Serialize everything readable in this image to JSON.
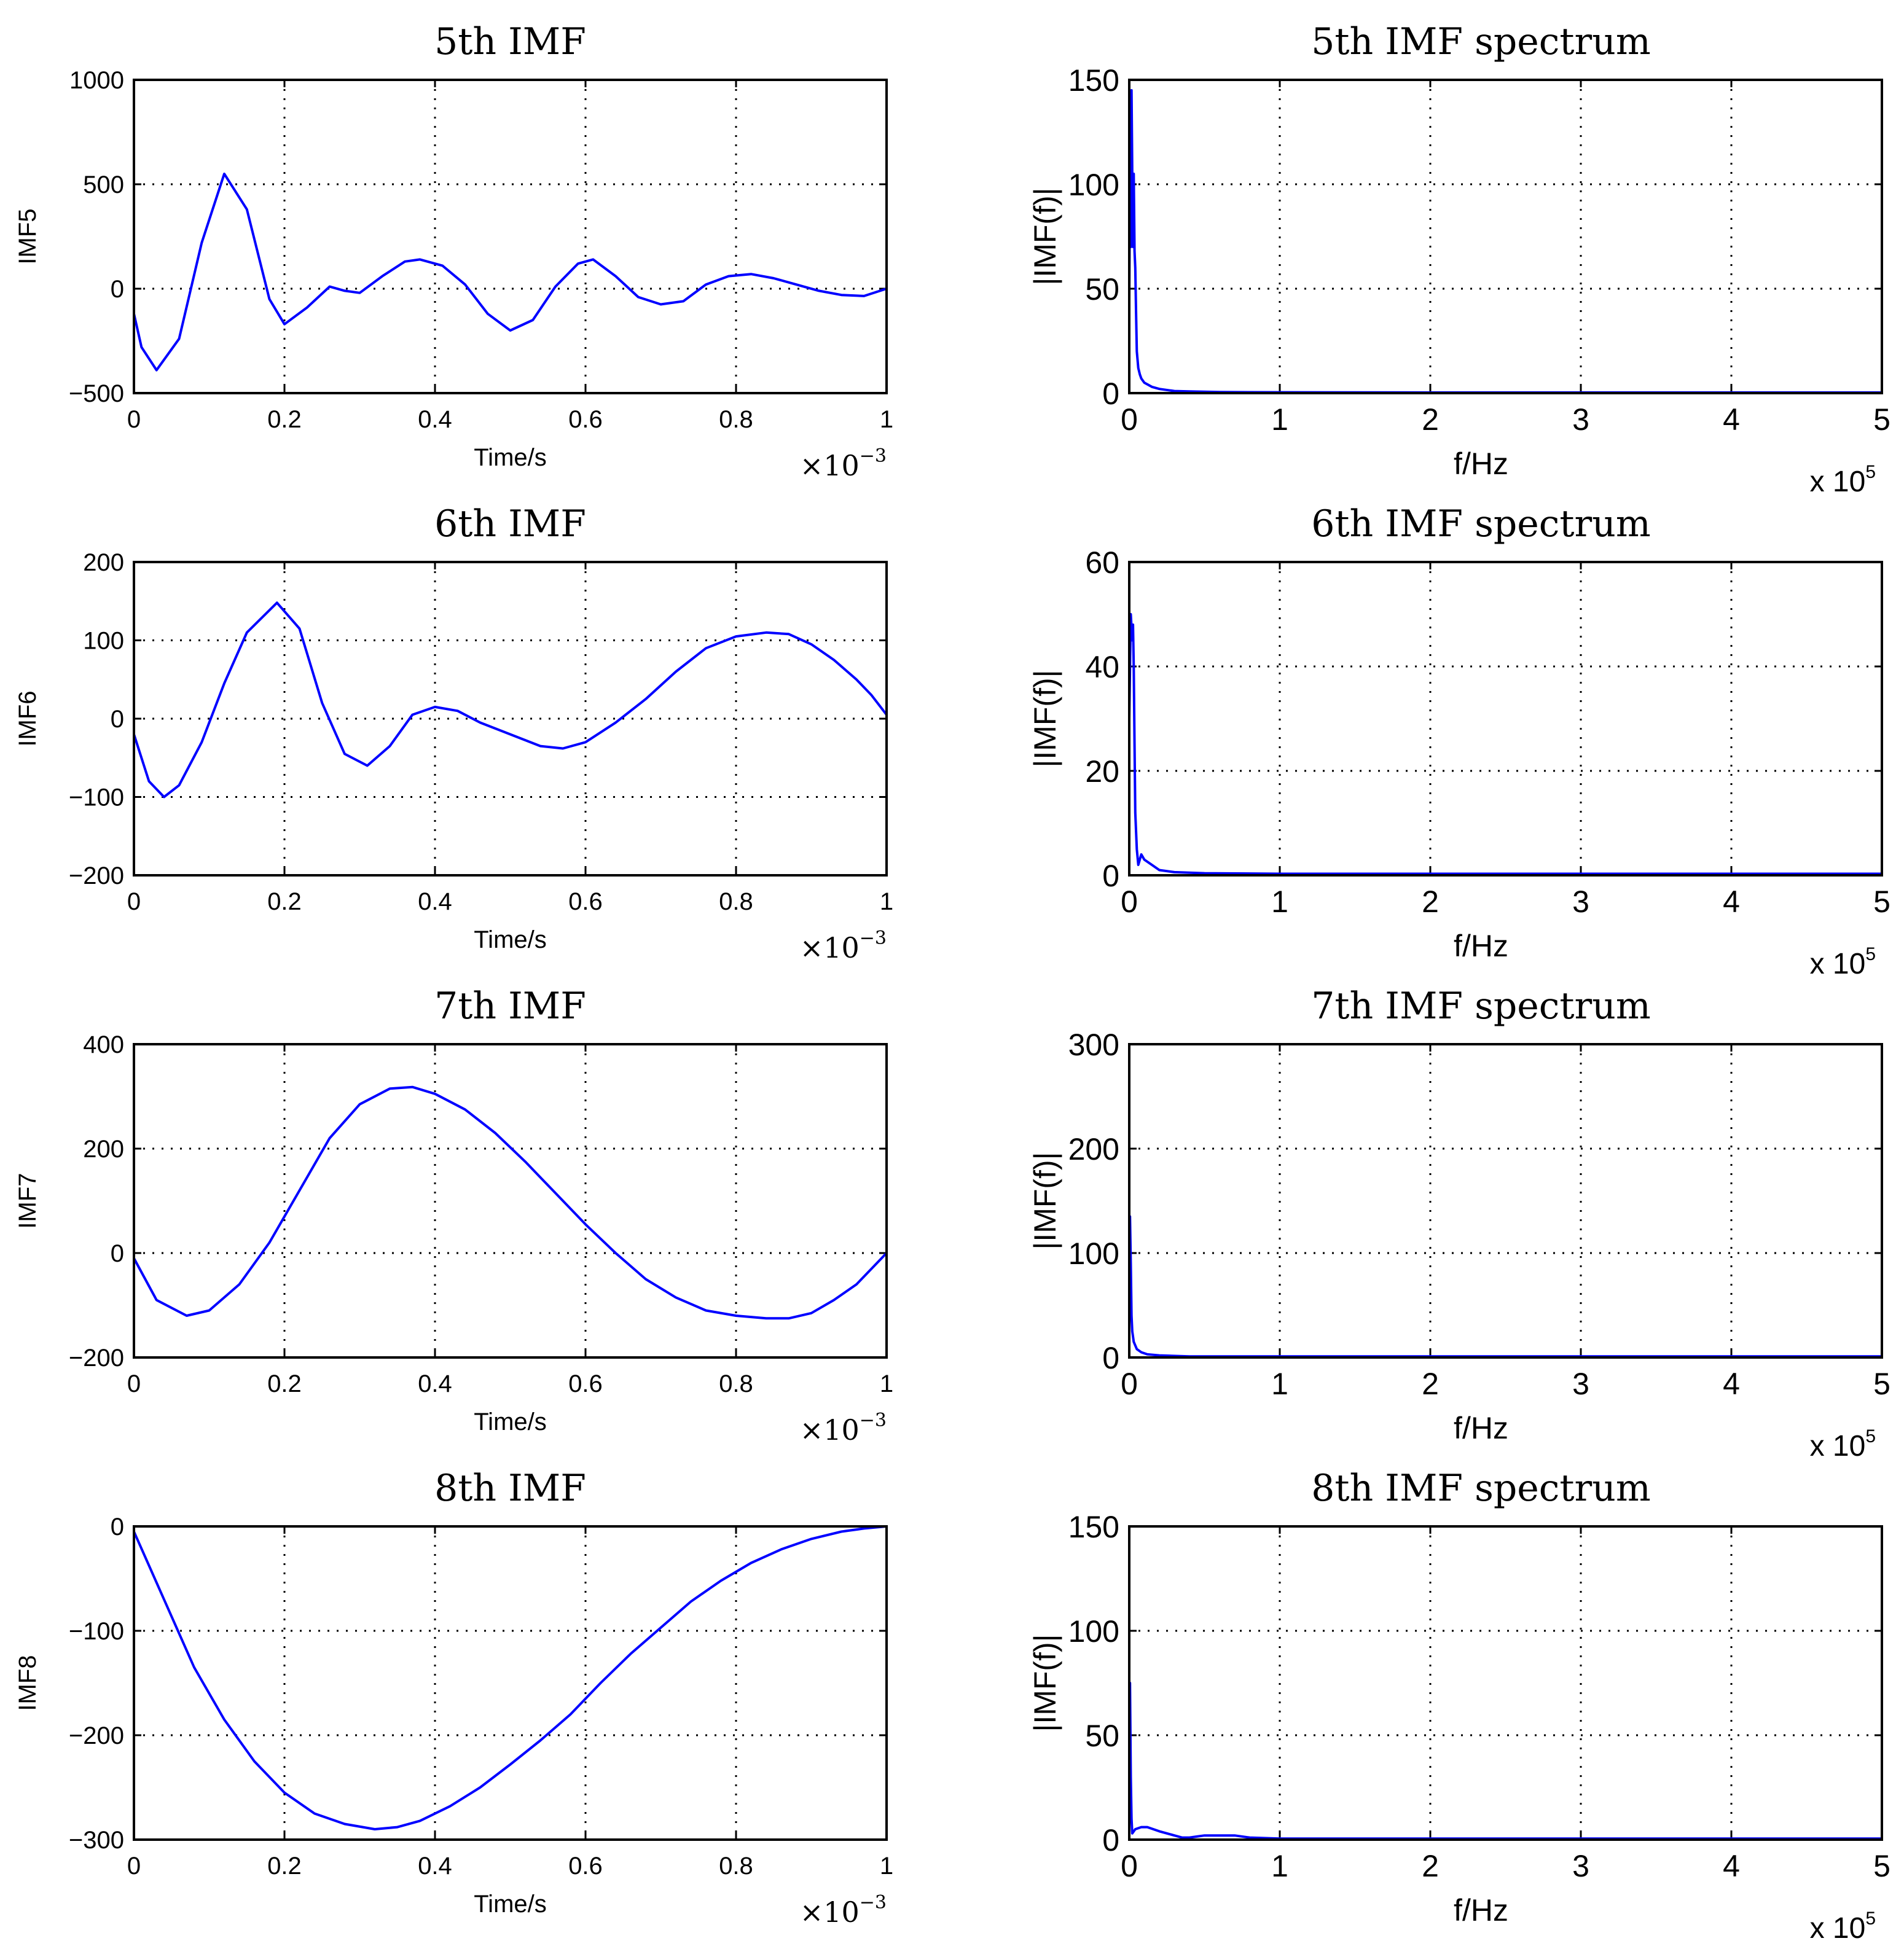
{
  "chart_data": [
    {
      "type": "line",
      "title": "5th IMF",
      "xlabel": "Time/s",
      "ylabel": "IMF5",
      "x_multiplier": "×10",
      "x_multiplier_exp": "−3",
      "xlim": [
        0,
        1
      ],
      "ylim": [
        -500,
        1000
      ],
      "xticks": [
        "0",
        "0.2",
        "0.4",
        "0.6",
        "0.8",
        "1"
      ],
      "yticks": [
        "−500",
        "0",
        "500",
        "1000"
      ],
      "series": [
        {
          "name": "IMF5",
          "color": "#0000ff",
          "x": [
            0,
            0.01,
            0.03,
            0.06,
            0.09,
            0.12,
            0.15,
            0.18,
            0.2,
            0.23,
            0.26,
            0.28,
            0.3,
            0.33,
            0.36,
            0.38,
            0.41,
            0.44,
            0.47,
            0.5,
            0.53,
            0.56,
            0.59,
            0.61,
            0.64,
            0.67,
            0.7,
            0.73,
            0.76,
            0.79,
            0.82,
            0.85,
            0.88,
            0.91,
            0.94,
            0.97,
            1.0
          ],
          "y": [
            -120,
            -280,
            -390,
            -240,
            220,
            550,
            380,
            -50,
            -170,
            -90,
            10,
            -10,
            -20,
            60,
            130,
            140,
            110,
            20,
            -120,
            -200,
            -150,
            10,
            120,
            140,
            60,
            -40,
            -75,
            -60,
            20,
            60,
            70,
            50,
            20,
            -10,
            -30,
            -35,
            0
          ]
        }
      ],
      "grid": true
    },
    {
      "type": "line",
      "title": "5th IMF spectrum",
      "xlabel": "f/Hz",
      "ylabel": "|IMF(f)|",
      "x_multiplier": "x 10",
      "x_multiplier_exp": "5",
      "xlim": [
        0,
        5
      ],
      "ylim": [
        0,
        150
      ],
      "xticks": [
        "0",
        "1",
        "2",
        "3",
        "4",
        "5"
      ],
      "yticks": [
        "0",
        "50",
        "100",
        "150"
      ],
      "series": [
        {
          "name": "spectrum5",
          "color": "#0000ff",
          "x": [
            0,
            0.005,
            0.01,
            0.015,
            0.02,
            0.025,
            0.03,
            0.035,
            0.04,
            0.045,
            0.05,
            0.06,
            0.07,
            0.08,
            0.1,
            0.15,
            0.2,
            0.3,
            0.4,
            0.6,
            1.0,
            2.0,
            3.0,
            4.0,
            5.0
          ],
          "y": [
            45,
            110,
            70,
            145,
            105,
            70,
            105,
            68,
            60,
            40,
            20,
            12,
            9,
            7,
            5,
            3,
            2,
            1,
            0.8,
            0.5,
            0.4,
            0.3,
            0.3,
            0.3,
            0.3
          ]
        }
      ],
      "grid": true
    },
    {
      "type": "line",
      "title": "6th IMF",
      "xlabel": "Time/s",
      "ylabel": "IMF6",
      "x_multiplier": "×10",
      "x_multiplier_exp": "−3",
      "xlim": [
        0,
        1
      ],
      "ylim": [
        -200,
        200
      ],
      "xticks": [
        "0",
        "0.2",
        "0.4",
        "0.6",
        "0.8",
        "1"
      ],
      "yticks": [
        "−200",
        "−100",
        "0",
        "100",
        "200"
      ],
      "series": [
        {
          "name": "IMF6",
          "color": "#0000ff",
          "x": [
            0,
            0.02,
            0.04,
            0.06,
            0.09,
            0.12,
            0.15,
            0.19,
            0.22,
            0.25,
            0.28,
            0.31,
            0.34,
            0.37,
            0.4,
            0.43,
            0.46,
            0.5,
            0.54,
            0.57,
            0.6,
            0.64,
            0.68,
            0.72,
            0.76,
            0.8,
            0.84,
            0.87,
            0.9,
            0.93,
            0.96,
            0.98,
            1.0
          ],
          "y": [
            -20,
            -80,
            -100,
            -85,
            -30,
            45,
            110,
            148,
            115,
            20,
            -45,
            -60,
            -35,
            5,
            15,
            10,
            -5,
            -20,
            -35,
            -38,
            -30,
            -5,
            25,
            60,
            90,
            105,
            110,
            108,
            95,
            75,
            50,
            30,
            5
          ]
        }
      ],
      "grid": true
    },
    {
      "type": "line",
      "title": "6th IMF spectrum",
      "xlabel": "f/Hz",
      "ylabel": "|IMF(f)|",
      "x_multiplier": "x 10",
      "x_multiplier_exp": "5",
      "xlim": [
        0,
        5
      ],
      "ylim": [
        0,
        60
      ],
      "xticks": [
        "0",
        "1",
        "2",
        "3",
        "4",
        "5"
      ],
      "yticks": [
        "0",
        "20",
        "40",
        "60"
      ],
      "series": [
        {
          "name": "spectrum6",
          "color": "#0000ff",
          "x": [
            0,
            0.01,
            0.02,
            0.025,
            0.03,
            0.035,
            0.04,
            0.05,
            0.06,
            0.08,
            0.1,
            0.15,
            0.2,
            0.3,
            0.5,
            1.0,
            2.0,
            3.0,
            4.0,
            5.0
          ],
          "y": [
            30,
            50,
            45,
            48,
            40,
            25,
            12,
            5,
            2,
            4,
            3,
            2,
            1,
            0.6,
            0.4,
            0.3,
            0.3,
            0.3,
            0.3,
            0.3
          ]
        }
      ],
      "grid": true
    },
    {
      "type": "line",
      "title": "7th IMF",
      "xlabel": "Time/s",
      "ylabel": "IMF7",
      "x_multiplier": "×10",
      "x_multiplier_exp": "−3",
      "xlim": [
        0,
        1
      ],
      "ylim": [
        -200,
        400
      ],
      "xticks": [
        "0",
        "0.2",
        "0.4",
        "0.6",
        "0.8",
        "1"
      ],
      "yticks": [
        "−200",
        "0",
        "200",
        "400"
      ],
      "series": [
        {
          "name": "IMF7",
          "color": "#0000ff",
          "x": [
            0,
            0.03,
            0.07,
            0.1,
            0.14,
            0.18,
            0.22,
            0.26,
            0.3,
            0.34,
            0.37,
            0.4,
            0.44,
            0.48,
            0.52,
            0.56,
            0.6,
            0.64,
            0.68,
            0.72,
            0.76,
            0.8,
            0.84,
            0.87,
            0.9,
            0.93,
            0.96,
            1.0
          ],
          "y": [
            -10,
            -90,
            -120,
            -110,
            -60,
            20,
            120,
            220,
            285,
            315,
            318,
            305,
            275,
            230,
            175,
            115,
            55,
            0,
            -50,
            -85,
            -110,
            -120,
            -125,
            -125,
            -115,
            -90,
            -60,
            0
          ]
        }
      ],
      "grid": true
    },
    {
      "type": "line",
      "title": "7th IMF spectrum",
      "xlabel": "f/Hz",
      "ylabel": "|IMF(f)|",
      "x_multiplier": "x 10",
      "x_multiplier_exp": "5",
      "xlim": [
        0,
        5
      ],
      "ylim": [
        0,
        300
      ],
      "xticks": [
        "0",
        "1",
        "2",
        "3",
        "4",
        "5"
      ],
      "yticks": [
        "0",
        "100",
        "200",
        "300"
      ],
      "series": [
        {
          "name": "spectrum7",
          "color": "#0000ff",
          "x": [
            0,
            0.005,
            0.01,
            0.015,
            0.02,
            0.03,
            0.05,
            0.08,
            0.12,
            0.2,
            0.4,
            1.0,
            2.0,
            3.0,
            4.0,
            5.0
          ],
          "y": [
            30,
            135,
            90,
            40,
            25,
            15,
            8,
            5,
            3,
            2,
            1,
            1,
            1,
            1,
            1,
            1
          ]
        }
      ],
      "grid": true
    },
    {
      "type": "line",
      "title": "8th IMF",
      "xlabel": "Time/s",
      "ylabel": "IMF8",
      "x_multiplier": "×10",
      "x_multiplier_exp": "−3",
      "xlim": [
        0,
        1
      ],
      "ylim": [
        -300,
        0
      ],
      "xticks": [
        "0",
        "0.2",
        "0.4",
        "0.6",
        "0.8",
        "1"
      ],
      "yticks": [
        "−300",
        "−200",
        "−100",
        "0"
      ],
      "series": [
        {
          "name": "IMF8",
          "color": "#0000ff",
          "x": [
            0,
            0.04,
            0.08,
            0.12,
            0.16,
            0.2,
            0.24,
            0.28,
            0.32,
            0.35,
            0.38,
            0.42,
            0.46,
            0.5,
            0.54,
            0.58,
            0.62,
            0.66,
            0.7,
            0.74,
            0.78,
            0.82,
            0.86,
            0.9,
            0.94,
            0.97,
            1.0
          ],
          "y": [
            -5,
            -70,
            -135,
            -185,
            -225,
            -255,
            -275,
            -285,
            -290,
            -288,
            -282,
            -268,
            -250,
            -228,
            -205,
            -180,
            -150,
            -122,
            -97,
            -72,
            -52,
            -35,
            -22,
            -12,
            -5,
            -2,
            0
          ]
        }
      ],
      "grid": true
    },
    {
      "type": "line",
      "title": "8th IMF spectrum",
      "xlabel": "f/Hz",
      "ylabel": "|IMF(f)|",
      "x_multiplier": "x 10",
      "x_multiplier_exp": "5",
      "xlim": [
        0,
        5
      ],
      "ylim": [
        0,
        150
      ],
      "xticks": [
        "0",
        "1",
        "2",
        "3",
        "4",
        "5"
      ],
      "yticks": [
        "0",
        "50",
        "100",
        "150"
      ],
      "series": [
        {
          "name": "spectrum8",
          "color": "#0000ff",
          "x": [
            0,
            0.005,
            0.01,
            0.015,
            0.02,
            0.04,
            0.08,
            0.12,
            0.16,
            0.2,
            0.25,
            0.3,
            0.35,
            0.4,
            0.45,
            0.5,
            0.6,
            0.7,
            0.8,
            1.0,
            2.0,
            3.0,
            4.0,
            5.0
          ],
          "y": [
            20,
            75,
            30,
            10,
            3,
            5,
            6,
            6,
            5,
            4,
            3,
            2,
            1,
            1,
            1.5,
            2,
            2,
            2,
            1,
            0.5,
            0.5,
            0.5,
            0.5,
            0.5
          ]
        }
      ],
      "grid": true
    }
  ]
}
